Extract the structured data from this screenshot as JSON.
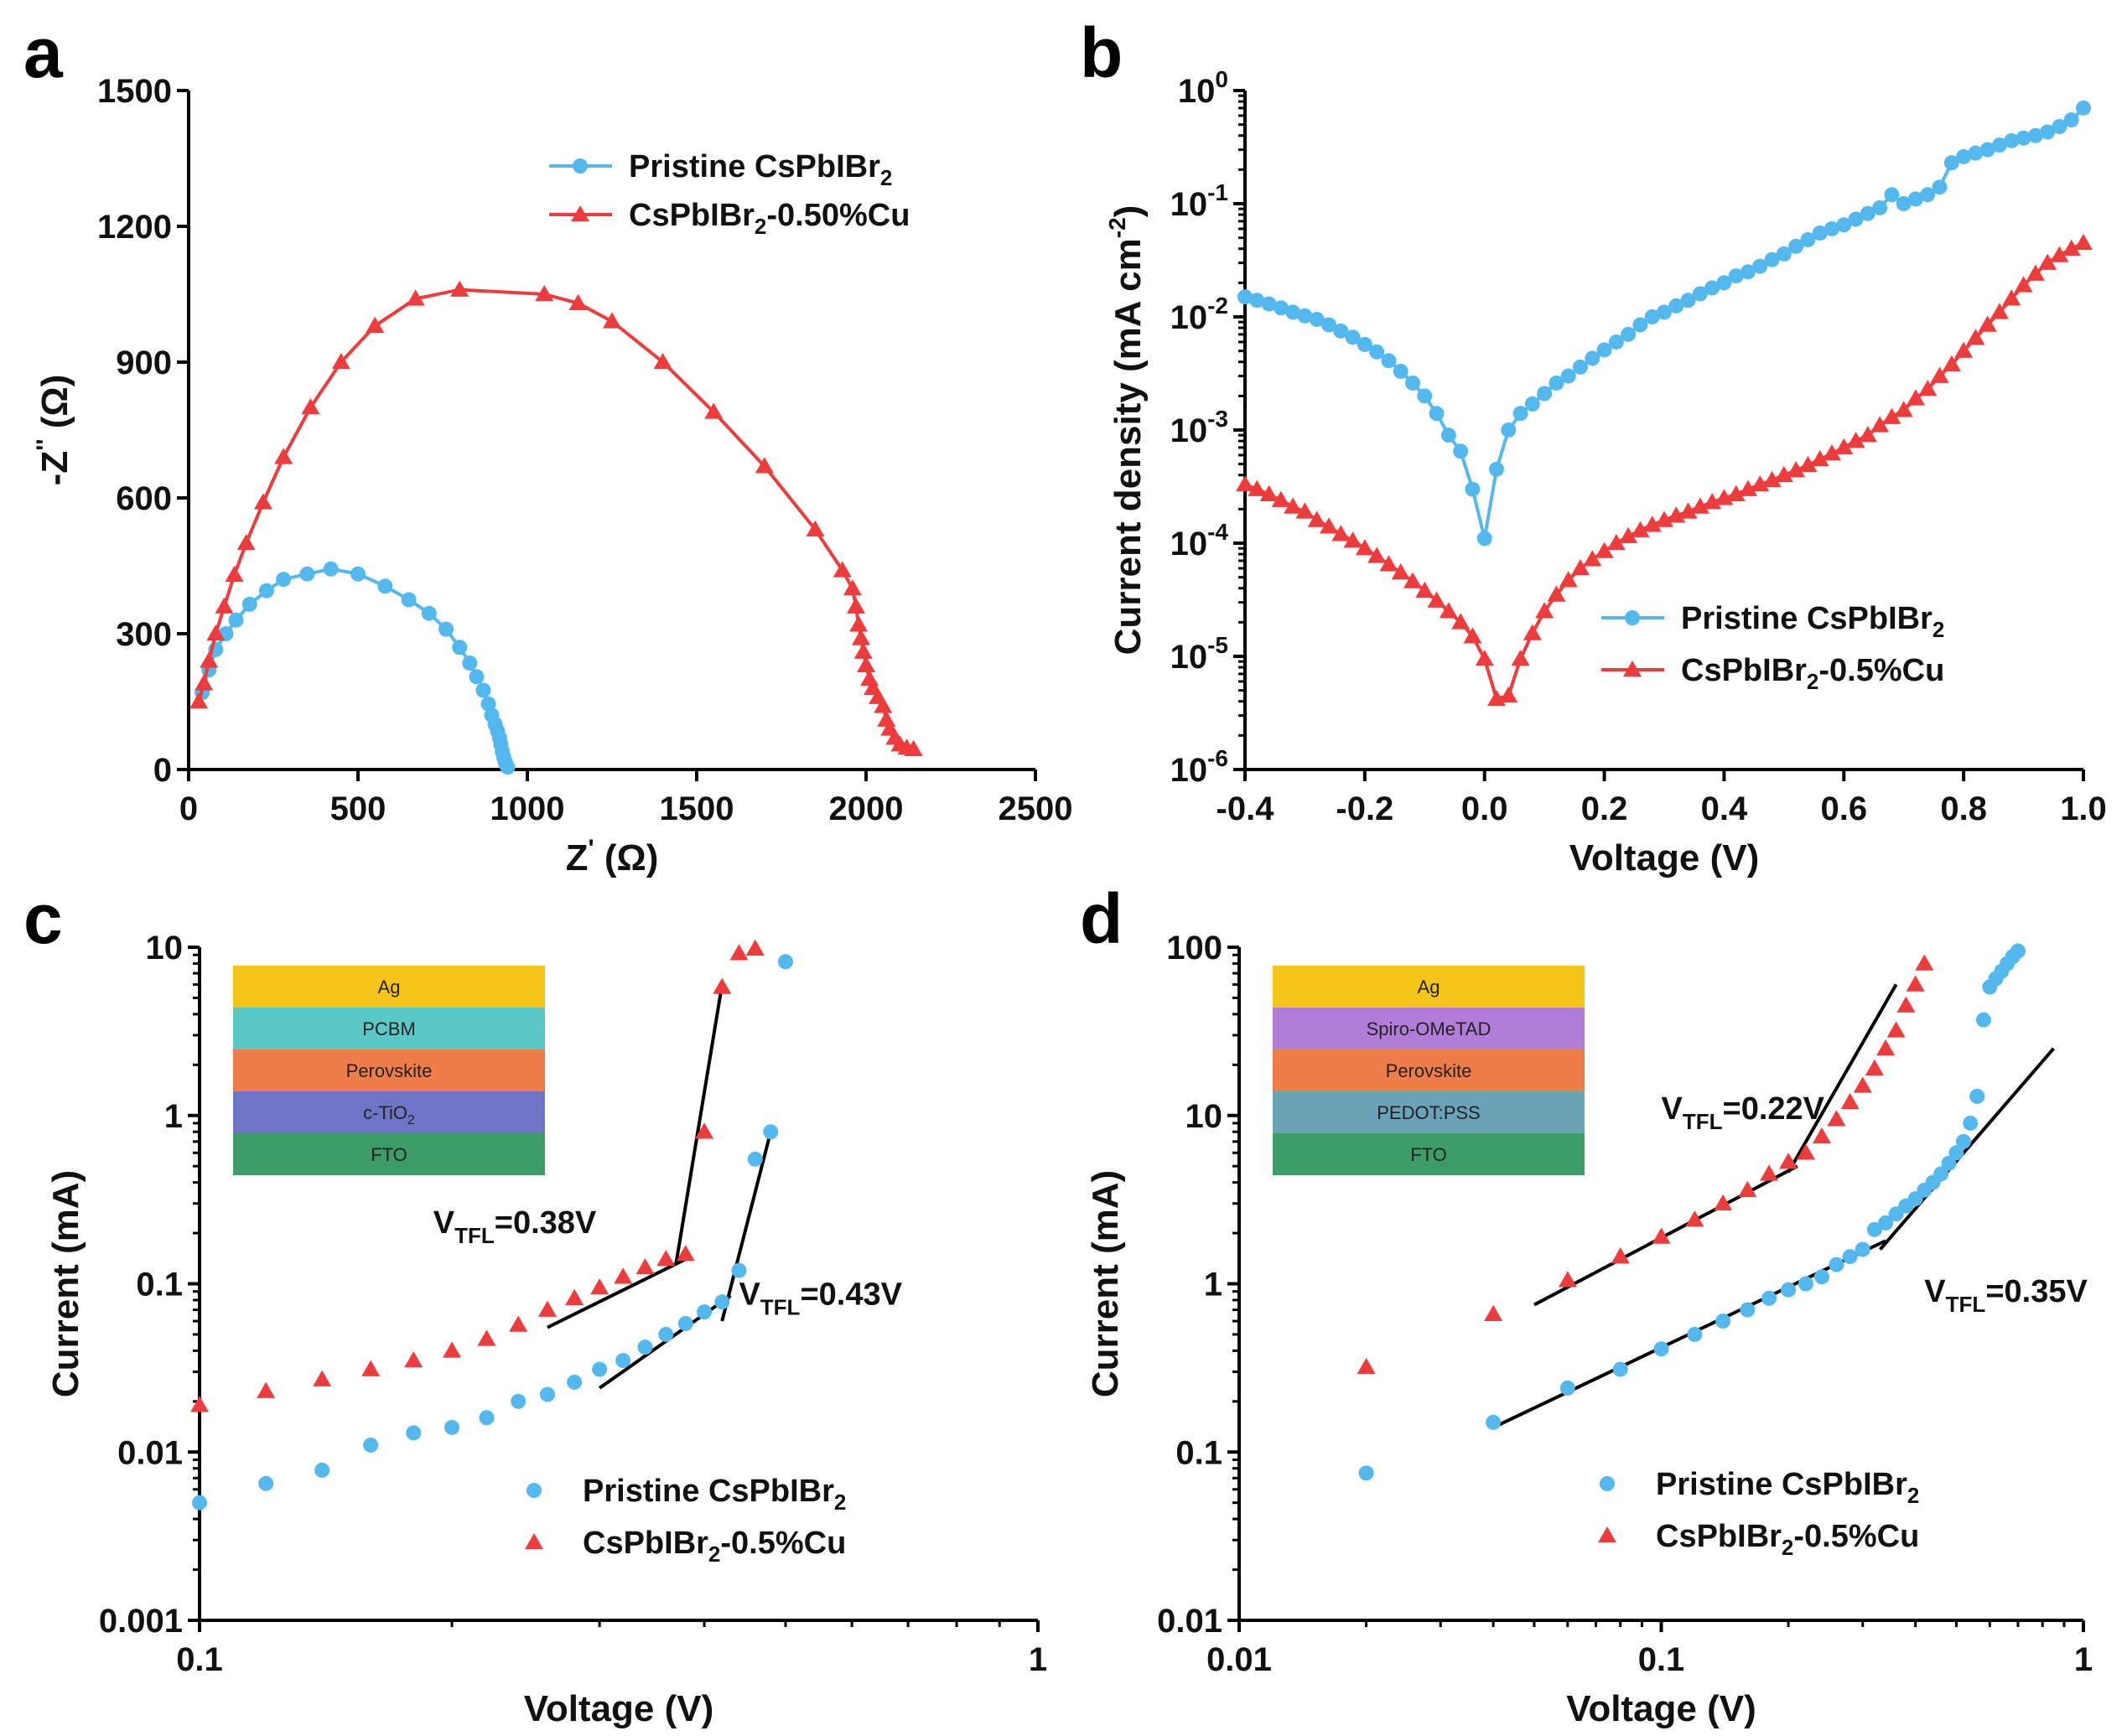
{
  "colors": {
    "pristine": "#53b8ee",
    "copper": "#ee3b3b",
    "fit": "#000000"
  },
  "chart_data": [
    {
      "id": "a",
      "panel_label": "a",
      "type": "scatter",
      "title": "",
      "xlabel": "Z' (Ω)",
      "ylabel": "-Z'' (Ω)",
      "xlim": [
        0,
        2500
      ],
      "ylim": [
        0,
        1500
      ],
      "xscale": "linear",
      "yscale": "linear",
      "xticks": [
        "0",
        "500",
        "1000",
        "1500",
        "2000",
        "2500"
      ],
      "yticks": [
        "0",
        "300",
        "600",
        "900",
        "1200",
        "1500"
      ],
      "legend_position": "top-right",
      "series": [
        {
          "name": "Pristine CsPbIBr2",
          "legend_label": "Pristine CsPbIBr",
          "legend_sub": "2",
          "legend_after": "",
          "color": "#53b8ee",
          "marker": "circle",
          "line": true,
          "x": [
            40,
            60,
            80,
            110,
            140,
            180,
            230,
            280,
            350,
            420,
            500,
            580,
            650,
            710,
            760,
            800,
            830,
            850,
            870,
            885,
            895,
            905,
            912,
            918,
            922,
            926,
            930,
            934,
            938,
            942
          ],
          "y": [
            170,
            220,
            265,
            300,
            330,
            365,
            395,
            420,
            432,
            443,
            432,
            405,
            375,
            345,
            310,
            270,
            235,
            205,
            175,
            145,
            120,
            100,
            85,
            70,
            55,
            40,
            28,
            18,
            10,
            5
          ]
        },
        {
          "name": "CsPbIBr2-0.50%Cu",
          "legend_label": "CsPbIBr",
          "legend_sub": "2",
          "legend_after": "-0.50%Cu",
          "color": "#ee3b3b",
          "marker": "triangle",
          "line": true,
          "x": [
            30,
            45,
            60,
            80,
            105,
            135,
            170,
            220,
            280,
            360,
            450,
            550,
            670,
            800,
            1050,
            1150,
            1250,
            1400,
            1550,
            1700,
            1850,
            1930,
            1960,
            1970,
            1978,
            1985,
            1992,
            2000,
            2010,
            2020,
            2035,
            2050,
            2060,
            2070,
            2085,
            2100,
            2120,
            2140
          ],
          "y": [
            150,
            190,
            240,
            300,
            360,
            430,
            500,
            590,
            690,
            800,
            900,
            980,
            1040,
            1060,
            1050,
            1030,
            990,
            900,
            790,
            670,
            530,
            440,
            400,
            360,
            320,
            290,
            260,
            230,
            200,
            180,
            160,
            140,
            110,
            90,
            70,
            55,
            48,
            45
          ]
        }
      ]
    },
    {
      "id": "b",
      "panel_label": "b",
      "type": "line",
      "title": "",
      "xlabel": "Voltage (V)",
      "ylabel": "Current density (mA cm-2)",
      "ylabel_main": "Current density (mA cm",
      "ylabel_sup": "-2",
      "ylabel_close": ")",
      "xlim": [
        -0.4,
        1.0
      ],
      "ylim": [
        1e-06,
        1
      ],
      "xscale": "linear",
      "yscale": "log",
      "xticks": [
        "-0.4",
        "-0.2",
        "0.0",
        "0.2",
        "0.4",
        "0.6",
        "0.8",
        "1.0"
      ],
      "yticks": [
        "10^0",
        "10^-1",
        "10^-2",
        "10^-3",
        "10^-4",
        "10^-5",
        "10^-6"
      ],
      "ytick_exponents": [
        "0",
        "-1",
        "-2",
        "-3",
        "-4",
        "-5",
        "-6"
      ],
      "legend_position": "bottom-right",
      "series": [
        {
          "name": "Pristine CsPbIBr2",
          "legend_label": "Pristine CsPbIBr",
          "legend_sub": "2",
          "legend_after": "",
          "color": "#53b8ee",
          "marker": "circle",
          "line": true,
          "x": [
            -0.4,
            -0.38,
            -0.36,
            -0.34,
            -0.32,
            -0.3,
            -0.28,
            -0.26,
            -0.24,
            -0.22,
            -0.2,
            -0.18,
            -0.16,
            -0.14,
            -0.12,
            -0.1,
            -0.08,
            -0.06,
            -0.04,
            -0.02,
            0.0,
            0.02,
            0.04,
            0.06,
            0.08,
            0.1,
            0.12,
            0.14,
            0.16,
            0.18,
            0.2,
            0.22,
            0.24,
            0.26,
            0.28,
            0.3,
            0.32,
            0.34,
            0.36,
            0.38,
            0.4,
            0.42,
            0.44,
            0.46,
            0.48,
            0.5,
            0.52,
            0.54,
            0.56,
            0.58,
            0.6,
            0.62,
            0.64,
            0.66,
            0.68,
            0.7,
            0.72,
            0.74,
            0.76,
            0.78,
            0.8,
            0.82,
            0.84,
            0.86,
            0.88,
            0.9,
            0.92,
            0.94,
            0.96,
            0.98,
            1.0
          ],
          "y": [
            0.015,
            0.014,
            0.013,
            0.012,
            0.011,
            0.0102,
            0.0095,
            0.0085,
            0.0075,
            0.0066,
            0.0057,
            0.0049,
            0.0041,
            0.0033,
            0.0026,
            0.002,
            0.0014,
            0.0009,
            0.00065,
            0.0003,
            0.00011,
            0.00045,
            0.001,
            0.0014,
            0.0017,
            0.0021,
            0.0026,
            0.003,
            0.0036,
            0.0043,
            0.0051,
            0.006,
            0.007,
            0.0085,
            0.01,
            0.011,
            0.0125,
            0.014,
            0.016,
            0.018,
            0.02,
            0.023,
            0.025,
            0.028,
            0.032,
            0.036,
            0.042,
            0.048,
            0.055,
            0.06,
            0.065,
            0.073,
            0.082,
            0.092,
            0.12,
            0.1,
            0.11,
            0.12,
            0.14,
            0.23,
            0.26,
            0.28,
            0.3,
            0.33,
            0.36,
            0.38,
            0.4,
            0.43,
            0.48,
            0.55,
            0.7
          ]
        },
        {
          "name": "CsPbIBr2-0.5%Cu",
          "legend_label": "CsPbIBr",
          "legend_sub": "2",
          "legend_after": "-0.5%Cu",
          "color": "#ee3b3b",
          "marker": "triangle",
          "line": true,
          "x": [
            -0.4,
            -0.38,
            -0.36,
            -0.34,
            -0.32,
            -0.3,
            -0.28,
            -0.26,
            -0.24,
            -0.22,
            -0.2,
            -0.18,
            -0.16,
            -0.14,
            -0.12,
            -0.1,
            -0.08,
            -0.06,
            -0.04,
            -0.02,
            0.0,
            0.02,
            0.04,
            0.06,
            0.08,
            0.1,
            0.12,
            0.14,
            0.16,
            0.18,
            0.2,
            0.22,
            0.24,
            0.26,
            0.28,
            0.3,
            0.32,
            0.34,
            0.36,
            0.38,
            0.4,
            0.42,
            0.44,
            0.46,
            0.48,
            0.5,
            0.52,
            0.54,
            0.56,
            0.58,
            0.6,
            0.62,
            0.64,
            0.66,
            0.68,
            0.7,
            0.72,
            0.74,
            0.76,
            0.78,
            0.8,
            0.82,
            0.84,
            0.86,
            0.88,
            0.9,
            0.92,
            0.94,
            0.96,
            0.98,
            1.0
          ],
          "y": [
            0.00033,
            0.0003,
            0.00027,
            0.00024,
            0.00021,
            0.00019,
            0.00016,
            0.00014,
            0.00012,
            0.000105,
            9e-05,
            7.7e-05,
            6.5e-05,
            5.5e-05,
            4.6e-05,
            3.8e-05,
            3.1e-05,
            2.5e-05,
            2e-05,
            1.5e-05,
            9.5e-06,
            4.2e-06,
            4.5e-06,
            9.5e-06,
            1.6e-05,
            2.5e-05,
            3.5e-05,
            4.7e-05,
            6e-05,
            7.2e-05,
            8.5e-05,
            0.0001,
            0.000115,
            0.00013,
            0.000145,
            0.00016,
            0.000175,
            0.00019,
            0.00021,
            0.00023,
            0.00025,
            0.00027,
            0.0003,
            0.00033,
            0.00036,
            0.0004,
            0.00044,
            0.00049,
            0.00055,
            0.00062,
            0.0007,
            0.0008,
            0.0009,
            0.0011,
            0.0013,
            0.0015,
            0.0019,
            0.0023,
            0.003,
            0.0038,
            0.005,
            0.0065,
            0.0085,
            0.011,
            0.0145,
            0.019,
            0.024,
            0.03,
            0.035,
            0.04,
            0.045
          ]
        }
      ]
    },
    {
      "id": "c",
      "panel_label": "c",
      "type": "scatter",
      "title": "",
      "xlabel": "Voltage (V)",
      "ylabel": "Current (mA)",
      "xlim": [
        0.1,
        1
      ],
      "ylim": [
        0.001,
        10
      ],
      "xscale": "log",
      "yscale": "log",
      "xticks": [
        "0.1",
        "1"
      ],
      "yticks": [
        "0.001",
        "0.01",
        "0.1",
        "1",
        "10"
      ],
      "legend_position": "bottom-right",
      "series": [
        {
          "name": "Pristine CsPbIBr2",
          "legend_label": "Pristine CsPbIBr",
          "legend_sub": "2",
          "legend_after": "",
          "color": "#53b8ee",
          "marker": "circle",
          "line": false,
          "x": [
            0.1,
            0.12,
            0.14,
            0.16,
            0.18,
            0.2,
            0.22,
            0.24,
            0.26,
            0.28,
            0.3,
            0.32,
            0.34,
            0.36,
            0.38,
            0.4,
            0.42,
            0.44,
            0.46,
            0.48,
            0.5
          ],
          "y": [
            0.005,
            0.0065,
            0.0078,
            0.011,
            0.013,
            0.014,
            0.016,
            0.02,
            0.022,
            0.026,
            0.031,
            0.035,
            0.042,
            0.05,
            0.058,
            0.068,
            0.078,
            0.12,
            0.55,
            0.8,
            8.2
          ]
        },
        {
          "name": "CsPbIBr2-0.5%Cu",
          "legend_label": "CsPbIBr",
          "legend_sub": "2",
          "legend_after": "-0.5%Cu",
          "color": "#ee3b3b",
          "marker": "triangle",
          "line": false,
          "x": [
            0.1,
            0.12,
            0.14,
            0.16,
            0.18,
            0.2,
            0.22,
            0.24,
            0.26,
            0.28,
            0.3,
            0.32,
            0.34,
            0.36,
            0.38,
            0.4,
            0.42,
            0.44,
            0.46
          ],
          "y": [
            0.019,
            0.023,
            0.027,
            0.031,
            0.035,
            0.04,
            0.047,
            0.057,
            0.07,
            0.082,
            0.095,
            0.11,
            0.125,
            0.14,
            0.15,
            0.8,
            5.8,
            9.2,
            9.8
          ]
        }
      ],
      "fit_lines": [
        {
          "x1": 0.26,
          "y1": 0.055,
          "x2": 0.38,
          "y2": 0.14
        },
        {
          "x1": 0.37,
          "y1": 0.13,
          "x2": 0.42,
          "y2": 6.0
        },
        {
          "x1": 0.3,
          "y1": 0.024,
          "x2": 0.43,
          "y2": 0.085
        },
        {
          "x1": 0.42,
          "y1": 0.06,
          "x2": 0.48,
          "y2": 0.8
        }
      ],
      "annotations": [
        {
          "main": "V",
          "sub": "TFL",
          "rest": "=0.38V",
          "x": 0.19,
          "y": 0.2
        },
        {
          "main": "V",
          "sub": "TFL",
          "rest": "=0.43V",
          "x": 0.44,
          "y": 0.075
        }
      ],
      "device_stack": [
        "Ag",
        "PCBM",
        "Perovskite",
        "c-TiO2",
        "FTO"
      ],
      "device_stack_colors": [
        "#f5c518",
        "#5bc8c8",
        "#ee7d4a",
        "#6e75c7",
        "#3c9b67"
      ]
    },
    {
      "id": "d",
      "panel_label": "d",
      "type": "scatter",
      "title": "",
      "xlabel": "Voltage (V)",
      "ylabel": "Current (mA)",
      "xlim": [
        0.01,
        1
      ],
      "ylim": [
        0.01,
        100
      ],
      "xscale": "log",
      "yscale": "log",
      "xticks": [
        "0.01",
        "0.1",
        "1"
      ],
      "yticks": [
        "0.01",
        "0.1",
        "1",
        "10",
        "100"
      ],
      "legend_position": "bottom-right",
      "series": [
        {
          "name": "Pristine CsPbIBr2",
          "legend_label": "Pristine CsPbIBr",
          "legend_sub": "2",
          "legend_after": "",
          "color": "#53b8ee",
          "marker": "circle",
          "line": false,
          "x": [
            0.02,
            0.04,
            0.06,
            0.08,
            0.1,
            0.12,
            0.14,
            0.16,
            0.18,
            0.2,
            0.22,
            0.24,
            0.26,
            0.28,
            0.3,
            0.32,
            0.34,
            0.36,
            0.38,
            0.4,
            0.42,
            0.44,
            0.46,
            0.48,
            0.5,
            0.52,
            0.54,
            0.56,
            0.58,
            0.6,
            0.62,
            0.64,
            0.66,
            0.68,
            0.7
          ],
          "y": [
            0.075,
            0.15,
            0.24,
            0.31,
            0.41,
            0.5,
            0.6,
            0.7,
            0.82,
            0.92,
            1.0,
            1.1,
            1.3,
            1.45,
            1.6,
            2.1,
            2.3,
            2.6,
            2.9,
            3.2,
            3.6,
            4.0,
            4.5,
            5.2,
            6.0,
            7.0,
            9.0,
            13,
            37,
            58,
            65,
            72,
            80,
            88,
            95
          ]
        },
        {
          "name": "CsPbIBr2-0.5%Cu",
          "legend_label": "CsPbIBr",
          "legend_sub": "2",
          "legend_after": "-0.5%Cu",
          "color": "#ee3b3b",
          "marker": "triangle",
          "line": false,
          "x": [
            0.02,
            0.04,
            0.06,
            0.08,
            0.1,
            0.12,
            0.14,
            0.16,
            0.18,
            0.2,
            0.22,
            0.24,
            0.26,
            0.28,
            0.3,
            0.32,
            0.34,
            0.36,
            0.38,
            0.4,
            0.42
          ],
          "y": [
            0.32,
            0.66,
            1.05,
            1.45,
            1.9,
            2.4,
            3.0,
            3.6,
            4.5,
            5.3,
            6.0,
            7.5,
            9.5,
            12,
            15,
            19,
            25,
            32,
            45,
            60,
            80
          ]
        }
      ],
      "fit_lines": [
        {
          "x1": 0.05,
          "y1": 0.75,
          "x2": 0.21,
          "y2": 5.0
        },
        {
          "x1": 0.2,
          "y1": 4.6,
          "x2": 0.36,
          "y2": 60
        },
        {
          "x1": 0.04,
          "y1": 0.14,
          "x2": 0.34,
          "y2": 1.8
        },
        {
          "x1": 0.33,
          "y1": 1.6,
          "x2": 0.85,
          "y2": 25
        }
      ],
      "annotations": [
        {
          "main": "V",
          "sub": "TFL",
          "rest": "=0.22V",
          "x": 0.1,
          "y": 9.5
        },
        {
          "main": "V",
          "sub": "TFL",
          "rest": "=0.35V",
          "x": 0.42,
          "y": 0.78
        }
      ],
      "device_stack": [
        "Ag",
        "Spiro-OMeTAD",
        "Perovskite",
        "PEDOT:PSS",
        "FTO"
      ],
      "device_stack_colors": [
        "#f5c518",
        "#b07ed8",
        "#ee7d4a",
        "#6aa3b8",
        "#3c9b67"
      ]
    }
  ]
}
